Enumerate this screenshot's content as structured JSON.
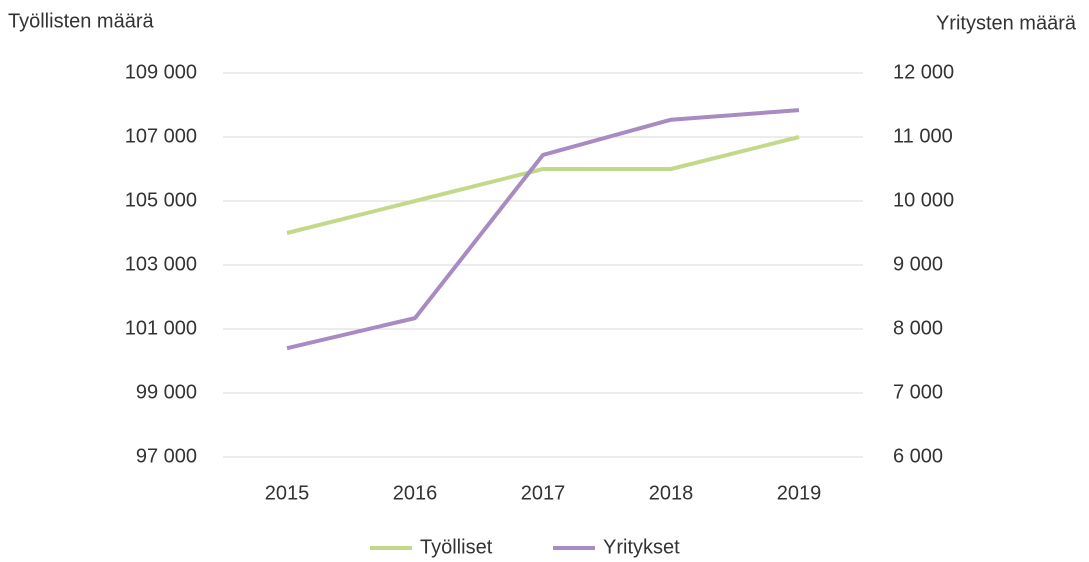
{
  "chart_data": {
    "type": "line",
    "y_label": "Työllisten määrä",
    "y2_label": "Yritysten määrä",
    "categories": [
      "2015",
      "2016",
      "2017",
      "2018",
      "2019"
    ],
    "series": [
      {
        "name": "Työlliset",
        "color": "#c3d98a",
        "values": [
          104000,
          105000,
          106000,
          106000,
          107000
        ]
      },
      {
        "name": "Yritykset",
        "color": "#a88bc2",
        "axis": "y2",
        "values": [
          7700,
          8170,
          10720,
          11270,
          11420
        ]
      }
    ],
    "ylim": [
      97000,
      109000
    ],
    "yticks": [
      {
        "value": 97000,
        "label": "97 000"
      },
      {
        "value": 99000,
        "label": "99 000"
      },
      {
        "value": 101000,
        "label": "101 000"
      },
      {
        "value": 103000,
        "label": "103 000"
      },
      {
        "value": 105000,
        "label": "105 000"
      },
      {
        "value": 107000,
        "label": "107 000"
      },
      {
        "value": 109000,
        "label": "109 000"
      }
    ],
    "y2lim": [
      6000,
      12000
    ],
    "y2ticks": [
      {
        "value": 6000,
        "label": "6 000"
      },
      {
        "value": 7000,
        "label": "7 000"
      },
      {
        "value": 8000,
        "label": "8 000"
      },
      {
        "value": 9000,
        "label": "9 000"
      },
      {
        "value": 10000,
        "label": "10 000"
      },
      {
        "value": 11000,
        "label": "11 000"
      },
      {
        "value": 12000,
        "label": "12 000"
      }
    ],
    "grid": true
  }
}
